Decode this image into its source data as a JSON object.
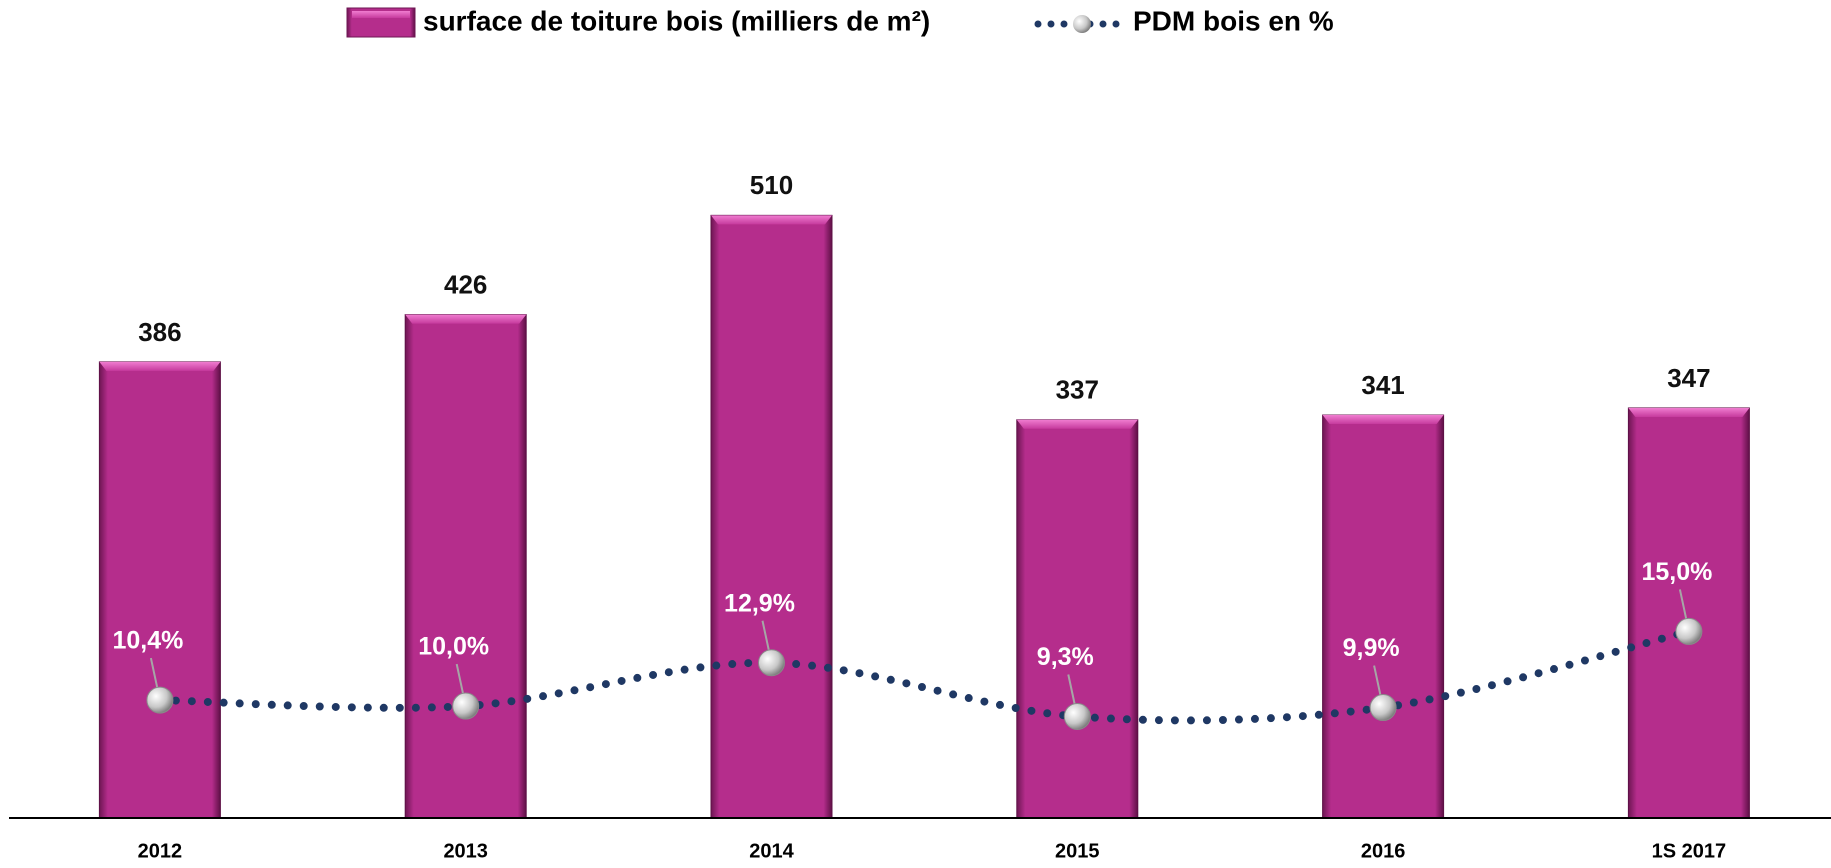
{
  "chart_data": {
    "type": "bar",
    "categories": [
      "2012",
      "2013",
      "2014",
      "2015",
      "2016",
      "1S 2017"
    ],
    "series": [
      {
        "name": "surface de toiture bois (milliers de m²)",
        "type": "bar",
        "color": "#b52d8c",
        "values": [
          386,
          426,
          510,
          337,
          341,
          347
        ]
      },
      {
        "name": "PDM bois en %",
        "type": "line",
        "axis": "y2",
        "color": "#1f3864",
        "values": [
          10.4,
          10.0,
          12.9,
          9.3,
          9.9,
          15.0
        ],
        "value_labels": [
          "10,4%",
          "10,0%",
          "12,9%",
          "9,3%",
          "9,9%",
          "15,0%"
        ]
      }
    ],
    "ylim": [
      0,
      600
    ],
    "y2lim": [
      2.5,
      50
    ],
    "legend": "top"
  }
}
